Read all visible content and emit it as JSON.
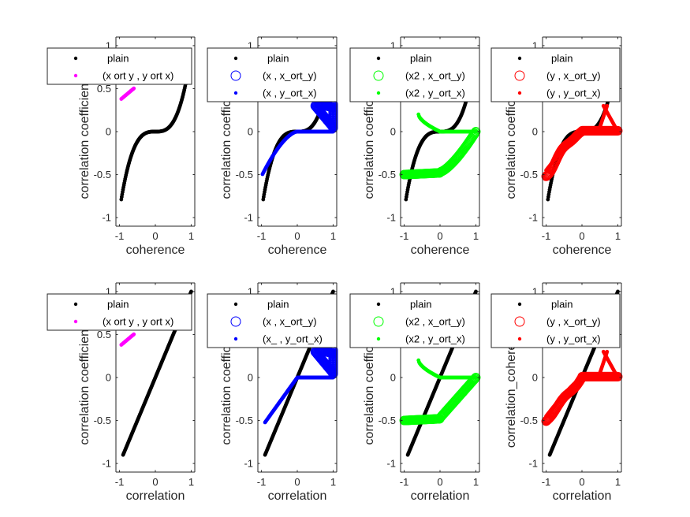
{
  "colors": {
    "plain": "#000000",
    "magenta": "#ff00ff",
    "blue": "#0000ff",
    "green": "#00ff00",
    "red": "#ff0000",
    "axis": "#262626"
  },
  "chart_data": [
    {
      "type": "scatter",
      "panel": "top-1",
      "xlabel": "coherence",
      "ylabel": "correlation coefficient",
      "xlim": [
        -1.1,
        1.1
      ],
      "ylim": [
        -1.1,
        1.1
      ],
      "xticks": [
        -1,
        0,
        1
      ],
      "yticks": [
        -1,
        -0.5,
        0,
        0.5,
        1
      ],
      "legend": "top",
      "series": [
        {
          "name": "plain",
          "color": "#000000",
          "marker": "dot",
          "fn": "cubic",
          "x": [
            -0.95,
            -0.5,
            0,
            0.5,
            0.95
          ],
          "y": [
            -0.88,
            -0.3,
            0,
            0.3,
            1.0
          ]
        },
        {
          "name": "(x ort y , y ort x)",
          "color": "#ff00ff",
          "marker": "dot",
          "fn": "linear",
          "x": [
            -0.95,
            -0.6
          ],
          "y": [
            0.38,
            0.5
          ]
        }
      ]
    },
    {
      "type": "scatter",
      "panel": "top-2",
      "xlabel": "coherence",
      "ylabel": "correlation coefficient",
      "xlim": [
        -1.1,
        1.1
      ],
      "ylim": [
        -1.1,
        1.1
      ],
      "xticks": [
        -1,
        0,
        1
      ],
      "yticks": [
        -1,
        -0.5,
        0,
        0.5,
        1
      ],
      "legend": "top",
      "series": [
        {
          "name": "plain",
          "color": "#000000",
          "marker": "dot",
          "fn": "cubic",
          "x": [
            -0.95,
            0,
            0.95
          ],
          "y": [
            -0.88,
            0,
            1.0
          ]
        },
        {
          "name": "(x , x_ort_y)",
          "color": "#0000ff",
          "marker": "circle",
          "fn": "fan",
          "x": [
            0.5,
            1.0
          ],
          "y": [
            0.3,
            0.05
          ]
        },
        {
          "name": "(x , y_ort_x)",
          "color": "#0000ff",
          "marker": "dot",
          "fn": "rise",
          "x": [
            -0.97,
            0,
            1.0
          ],
          "y": [
            -0.52,
            0,
            0
          ]
        }
      ]
    },
    {
      "type": "scatter",
      "panel": "top-3",
      "xlabel": "coherence",
      "ylabel": "correlation coefficient",
      "xlim": [
        -1.1,
        1.1
      ],
      "ylim": [
        -1.1,
        1.1
      ],
      "xticks": [
        -1,
        0,
        1
      ],
      "yticks": [
        -1,
        -0.5,
        0,
        0.5,
        1
      ],
      "legend": "top",
      "series": [
        {
          "name": "plain",
          "color": "#000000",
          "marker": "dot",
          "fn": "cubic",
          "x": [
            -0.95,
            0,
            0.95
          ],
          "y": [
            -0.88,
            0,
            1.0
          ]
        },
        {
          "name": "(x2 , x_ort_y)",
          "color": "#00ff00",
          "marker": "circle",
          "fn": "green_circle",
          "x": [
            -1.0,
            0,
            1.0
          ],
          "y": [
            -0.5,
            -0.47,
            0.0
          ]
        },
        {
          "name": "(x2 , y_ort_x)",
          "color": "#00ff00",
          "marker": "dot",
          "fn": "green_dot",
          "x": [
            -0.6,
            0,
            1.0
          ],
          "y": [
            0.2,
            0,
            0
          ]
        }
      ]
    },
    {
      "type": "scatter",
      "panel": "top-4",
      "xlabel": "coherence",
      "ylabel": "correlation coefficient",
      "xlim": [
        -1.1,
        1.1
      ],
      "ylim": [
        -1.1,
        1.1
      ],
      "xticks": [
        -1,
        0,
        1
      ],
      "yticks": [
        -1,
        -0.5,
        0,
        0.5,
        1
      ],
      "legend": "top",
      "series": [
        {
          "name": "plain",
          "color": "#000000",
          "marker": "dot",
          "fn": "cubic",
          "x": [
            -0.95,
            0,
            0.95
          ],
          "y": [
            -0.88,
            0,
            1.0
          ]
        },
        {
          "name": "(y , x_ort_y)",
          "color": "#ff0000",
          "marker": "circle",
          "fn": "red_circle",
          "x": [
            -1.0,
            0,
            1.0
          ],
          "y": [
            -0.5,
            0,
            0
          ]
        },
        {
          "name": "(y , y_ort_x)",
          "color": "#ff0000",
          "marker": "dot",
          "fn": "red_dot",
          "x": [
            -1.0,
            0,
            0.6,
            1.0
          ],
          "y": [
            -0.45,
            0,
            0.3,
            0
          ]
        }
      ]
    },
    {
      "type": "scatter",
      "panel": "bottom-1",
      "xlabel": "correlation",
      "ylabel": "correlation coefficient",
      "xlim": [
        -1.1,
        1.1
      ],
      "ylim": [
        -1.1,
        1.1
      ],
      "xticks": [
        -1,
        0,
        1
      ],
      "yticks": [
        -1,
        -0.5,
        0,
        0.5,
        1
      ],
      "legend": "top",
      "series": [
        {
          "name": "plain",
          "color": "#000000",
          "marker": "dot",
          "fn": "identity",
          "x": [
            -0.9,
            0,
            1.0
          ],
          "y": [
            -0.88,
            0,
            1.0
          ]
        },
        {
          "name": "(x ort y , y ort x)",
          "color": "#ff00ff",
          "marker": "dot",
          "fn": "linear",
          "x": [
            -0.95,
            -0.6
          ],
          "y": [
            0.38,
            0.5
          ]
        }
      ]
    },
    {
      "type": "scatter",
      "panel": "bottom-2",
      "xlabel": "correlation",
      "ylabel": "correlation coefficient",
      "xlim": [
        -1.1,
        1.1
      ],
      "ylim": [
        -1.1,
        1.1
      ],
      "xticks": [
        -1,
        0,
        1
      ],
      "yticks": [
        -1,
        -0.5,
        0,
        0.5,
        1
      ],
      "legend": "top",
      "series": [
        {
          "name": "plain",
          "color": "#000000",
          "marker": "dot",
          "fn": "identity",
          "x": [
            -0.9,
            0,
            1.0
          ],
          "y": [
            -0.88,
            0,
            1.0
          ]
        },
        {
          "name": "(x , x_ort_y)",
          "color": "#0000ff",
          "marker": "circle",
          "fn": "fan",
          "x": [
            0.5,
            1.0
          ],
          "y": [
            0.3,
            0.05
          ]
        },
        {
          "name": "(x_ , y_ort_x)",
          "color": "#0000ff",
          "marker": "dot",
          "fn": "lin_rise",
          "x": [
            -0.9,
            0,
            1.0
          ],
          "y": [
            -0.52,
            0,
            0
          ]
        }
      ]
    },
    {
      "type": "scatter",
      "panel": "bottom-3",
      "xlabel": "correlation",
      "ylabel": "correlation coefficient",
      "xlim": [
        -1.1,
        1.1
      ],
      "ylim": [
        -1.1,
        1.1
      ],
      "xticks": [
        -1,
        0,
        1
      ],
      "yticks": [
        -1,
        -0.5,
        0,
        0.5,
        1
      ],
      "legend": "top",
      "series": [
        {
          "name": "plain",
          "color": "#000000",
          "marker": "dot",
          "fn": "identity",
          "x": [
            -0.9,
            0,
            1.0
          ],
          "y": [
            -0.88,
            0,
            1.0
          ]
        },
        {
          "name": "(x2 , x_ort_y)",
          "color": "#00ff00",
          "marker": "circle",
          "fn": "green_circle_lin",
          "x": [
            -1.0,
            0,
            1.0
          ],
          "y": [
            -0.5,
            -0.47,
            0.0
          ]
        },
        {
          "name": "(x2 , y_ort_x)",
          "color": "#00ff00",
          "marker": "dot",
          "fn": "green_dot",
          "x": [
            -0.6,
            0,
            1.0
          ],
          "y": [
            0.2,
            0,
            0
          ]
        }
      ]
    },
    {
      "type": "scatter",
      "panel": "bottom-4",
      "xlabel": "correlation",
      "ylabel": "correlation_coherence",
      "xlim": [
        -1.1,
        1.1
      ],
      "ylim": [
        -1.1,
        1.1
      ],
      "xticks": [
        -1,
        0,
        1
      ],
      "yticks": [
        -1,
        -0.5,
        0,
        0.5,
        1
      ],
      "legend": "top",
      "series": [
        {
          "name": "plain",
          "color": "#000000",
          "marker": "dot",
          "fn": "identity",
          "x": [
            -0.9,
            0,
            1.0
          ],
          "y": [
            -0.88,
            0,
            1.0
          ]
        },
        {
          "name": "(y , x_ort_y)",
          "color": "#ff0000",
          "marker": "circle",
          "fn": "red_circle_lin",
          "x": [
            -1.0,
            0,
            1.0
          ],
          "y": [
            -0.5,
            0,
            0
          ]
        },
        {
          "name": "(y , y_ort_x)",
          "color": "#ff0000",
          "marker": "dot",
          "fn": "red_dot",
          "x": [
            -1.0,
            0,
            0.6,
            1.0
          ],
          "y": [
            -0.45,
            0,
            0.3,
            0
          ]
        }
      ]
    }
  ]
}
